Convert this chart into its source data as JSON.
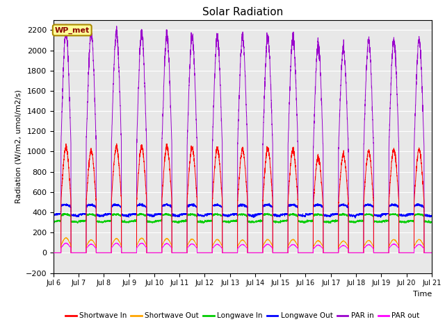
{
  "title": "Solar Radiation",
  "xlabel": "Time",
  "ylabel": "Radiation (W/m2, umol/m2/s)",
  "ylim": [
    -200,
    2300
  ],
  "yticks": [
    -200,
    0,
    200,
    400,
    600,
    800,
    1000,
    1200,
    1400,
    1600,
    1800,
    2000,
    2200
  ],
  "xstart": 6,
  "xend": 21,
  "xtick_labels": [
    "Jul 6",
    "Jul 7",
    "Jul 8",
    "Jul 9",
    "Jul 10",
    "Jul 11",
    "Jul 12",
    "Jul 13",
    "Jul 14",
    "Jul 15",
    "Jul 16",
    "Jul 17",
    "Jul 18",
    "Jul 19",
    "Jul 20",
    "Jul 21"
  ],
  "colors": {
    "shortwave_in": "#ff0000",
    "shortwave_out": "#ffa500",
    "longwave_in": "#00cc00",
    "longwave_out": "#0000ff",
    "par_in": "#9900cc",
    "par_out": "#ff00ff"
  },
  "legend_labels": [
    "Shortwave In",
    "Shortwave Out",
    "Longwave In",
    "Longwave Out",
    "PAR in",
    "PAR out"
  ],
  "annotation_text": "WP_met",
  "annotation_color": "#8b0000",
  "annotation_bg": "#ffff99",
  "background_color": "#e8e8e8",
  "n_days": 15,
  "points_per_day": 288,
  "shortwave_in_peaks": [
    1040,
    1010,
    1050,
    1050,
    1050,
    1040,
    1030,
    1020,
    1030,
    1020,
    940,
    970,
    1000,
    1020,
    1020
  ],
  "par_in_peaks": [
    2180,
    2180,
    2180,
    2170,
    2150,
    2140,
    2130,
    2130,
    2130,
    2130,
    2050,
    2020,
    2090,
    2100,
    2100
  ],
  "shortwave_out_peaks": [
    155,
    135,
    148,
    152,
    148,
    143,
    138,
    133,
    138,
    138,
    125,
    122,
    128,
    138,
    138
  ],
  "par_out_peaks": [
    100,
    90,
    100,
    100,
    96,
    93,
    88,
    86,
    88,
    86,
    80,
    76,
    84,
    91,
    86
  ],
  "longwave_in_base": 310,
  "longwave_in_day_bump": 65,
  "longwave_out_base": 375,
  "longwave_out_day_bump": 90,
  "day11_cloudy": true
}
